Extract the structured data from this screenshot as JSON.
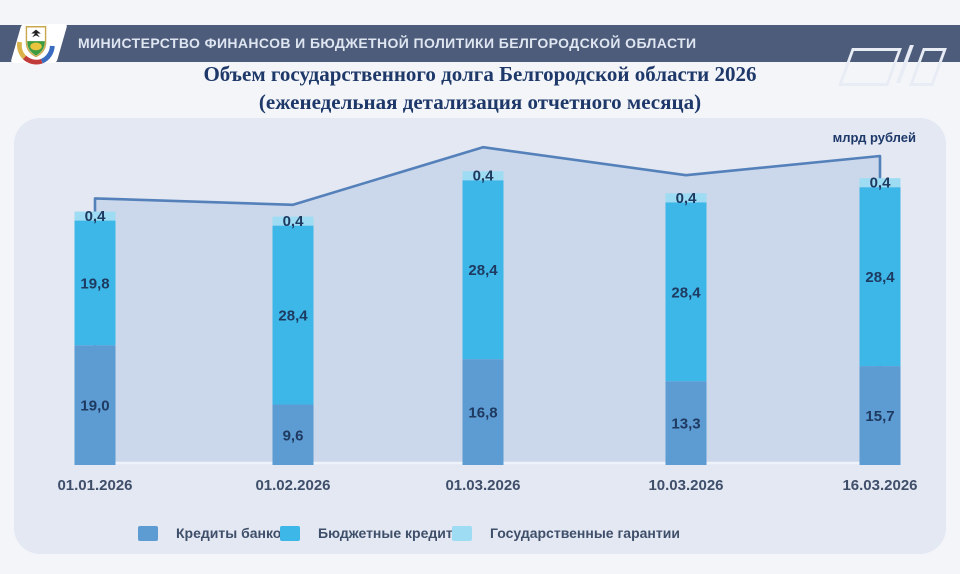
{
  "header": {
    "ministry_title": "МИНИСТЕРСТВО ФИНАНСОВ И БЮДЖЕТНОЙ ПОЛИТИКИ БЕЛГОРОДСКОЙ ОБЛАСТИ"
  },
  "page_title": {
    "line1": "Объем государственного долга Белгородской области 2026",
    "line2": "(еженедельная детализация отчетного месяца)"
  },
  "chart_data": {
    "type": "bar",
    "subtype": "stacked-bars-with-total-area-line",
    "title": "Объем государственного долга Белгородской области 2026 (еженедельная детализация отчетного месяца)",
    "unit_label": "млрд рублей",
    "categories": [
      "01.01.2026",
      "01.02.2026",
      "01.03.2026",
      "10.03.2026",
      "16.03.2026"
    ],
    "series": [
      {
        "name": "Кредиты банков",
        "color": "#5d9bd3",
        "values": [
          19.0,
          9.6,
          16.8,
          13.3,
          15.7
        ]
      },
      {
        "name": "Бюджетные кредиты",
        "color": "#3db7e8",
        "values": [
          19.8,
          28.4,
          28.4,
          28.4,
          28.4
        ]
      },
      {
        "name": "Государственные гарантии",
        "color": "#9edcf3",
        "values": [
          0.4,
          0.4,
          0.4,
          0.4,
          0.4
        ]
      }
    ],
    "totals": [
      39.2,
      38.4,
      45.6,
      42.1,
      44.5
    ],
    "value_label_decimals": 1,
    "decimal_separator": ",",
    "legend_position": "bottom",
    "grid": false,
    "colors": {
      "area_fill": "#cbd7ea",
      "total_line": "#5581bb",
      "baseline": "#eef2f9",
      "value_label": "#1e3a60",
      "axis_label": "#3f4f6a"
    }
  }
}
